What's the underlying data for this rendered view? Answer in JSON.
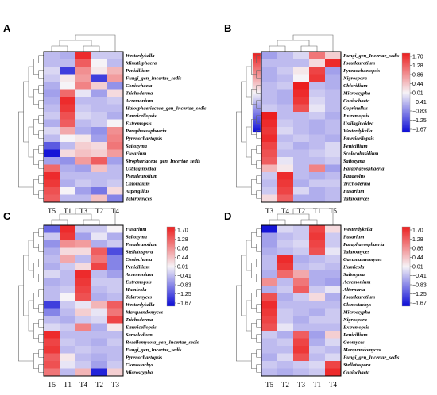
{
  "colors": {
    "low": "#0b0bd6",
    "mid": "#f6f3f7",
    "high": "#ec1f1f"
  },
  "colorbar_ticks": [
    "1.70",
    "1.28",
    "0.86",
    "0.44",
    "0.01",
    "−0.41",
    "−0.83",
    "−1.25",
    "−1.67"
  ],
  "chart_data": [
    {
      "type": "heatmap",
      "panel": "A",
      "range": [
        -1.67,
        1.7
      ],
      "columns": [
        "T5",
        "T1",
        "T3",
        "T2",
        "T4"
      ],
      "rows": [
        "Westerdykella",
        "Minutisphaera",
        "Penicillium",
        "Fungi_gen_Incertae_sedis",
        "Coniochaeta",
        "Trichoderma",
        "Acremonium",
        "Halosphaeriaceae_gen_Incertae_sedis",
        "Emericellopsis",
        "Extremopsis",
        "Paraphaeosphaeria",
        "Pyrenochaetopsis",
        "Saitozyma",
        "Fusarium",
        "Strophariaceae_gen_Incertae_sedis",
        "Ustilaginoidea",
        "Pseudeurotium",
        "Chloridium",
        "Aspergillus",
        "Talaromyces"
      ],
      "values": [
        [
          -0.4,
          -0.5,
          1.6,
          -0.3,
          -0.3
        ],
        [
          -0.4,
          -0.4,
          1.2,
          0.0,
          -0.4
        ],
        [
          -0.2,
          -1.3,
          0.8,
          0.1,
          0.5
        ],
        [
          -0.3,
          0.1,
          0.7,
          -1.3,
          0.7
        ],
        [
          -0.5,
          0.0,
          0.9,
          0.3,
          -0.7
        ],
        [
          -0.6,
          1.1,
          -0.1,
          -0.6,
          0.2
        ],
        [
          -0.5,
          1.6,
          -0.4,
          -0.4,
          -0.3
        ],
        [
          -0.4,
          1.5,
          -0.3,
          -0.4,
          -0.4
        ],
        [
          -0.3,
          1.3,
          -0.2,
          -0.3,
          -0.5
        ],
        [
          -0.5,
          1.2,
          -0.4,
          -0.3,
          0.0
        ],
        [
          -0.2,
          0.6,
          -0.5,
          -0.7,
          0.8
        ],
        [
          -0.4,
          0.0,
          0.1,
          -0.6,
          0.9
        ],
        [
          -1.1,
          -0.4,
          0.3,
          0.2,
          1.0
        ],
        [
          -1.6,
          0.2,
          0.4,
          0.3,
          0.7
        ],
        [
          -0.6,
          -0.7,
          0.7,
          1.2,
          -0.6
        ],
        [
          1.1,
          -0.5,
          -0.6,
          0.4,
          -0.4
        ],
        [
          1.6,
          -0.4,
          -0.4,
          -0.4,
          -0.4
        ],
        [
          1.5,
          -0.5,
          -0.3,
          -0.4,
          -0.3
        ],
        [
          1.3,
          0.0,
          -0.6,
          -0.9,
          0.2
        ],
        [
          1.2,
          -0.4,
          -0.4,
          0.4,
          -0.8
        ]
      ]
    },
    {
      "type": "heatmap",
      "panel": "B",
      "range": [
        -1.67,
        1.7
      ],
      "columns": [
        "T3",
        "T4",
        "T2",
        "T1",
        "T5"
      ],
      "rows": [
        "Fungi_gen_Incertae_sedis",
        "Pseudeurotium",
        "Pyrenochaetopsis",
        "Nigrospora",
        "Chloridium",
        "Microscypha",
        "Coniochaeta",
        "Coprinellus",
        "Extremopsis",
        "Ustilaginoidea",
        "Westerdykella",
        "Emericellopsis",
        "Penicillium",
        "Scolecobasidium",
        "Saitozyma",
        "Paraphaeosphaeria",
        "Panaeolus",
        "Trichoderma",
        "Fusarium",
        "Talaromyces"
      ],
      "values": [
        [
          -0.6,
          -0.4,
          -0.2,
          1.0,
          0.3
        ],
        [
          -0.4,
          -0.4,
          -0.4,
          0.2,
          1.6
        ],
        [
          -0.5,
          -0.3,
          0.1,
          1.4,
          -0.6
        ],
        [
          -0.5,
          -0.4,
          0.0,
          1.5,
          -0.5
        ],
        [
          -0.4,
          -0.3,
          1.7,
          -0.4,
          -0.5
        ],
        [
          -0.4,
          -0.5,
          1.6,
          -0.3,
          -0.4
        ],
        [
          -0.4,
          -0.5,
          1.5,
          -0.2,
          -0.4
        ],
        [
          -0.3,
          -0.4,
          1.3,
          -0.1,
          -0.4
        ],
        [
          1.7,
          -0.4,
          -0.4,
          -0.3,
          -0.5
        ],
        [
          1.6,
          -0.3,
          -0.4,
          -0.5,
          -0.4
        ],
        [
          1.5,
          -0.2,
          -0.4,
          -0.5,
          -0.4
        ],
        [
          1.6,
          -0.4,
          -0.3,
          -0.4,
          -0.5
        ],
        [
          1.4,
          -0.3,
          -0.5,
          -0.4,
          -0.2
        ],
        [
          1.3,
          -0.4,
          -0.4,
          -0.3,
          -0.2
        ],
        [
          1.2,
          -0.1,
          -0.4,
          -0.4,
          -0.3
        ],
        [
          0.5,
          0.1,
          -0.4,
          0.9,
          -0.6
        ],
        [
          -0.3,
          1.6,
          -0.4,
          -0.5,
          -0.4
        ],
        [
          -0.4,
          1.5,
          -0.5,
          -0.3,
          -0.3
        ],
        [
          -0.3,
          1.4,
          -0.2,
          -0.5,
          -0.4
        ],
        [
          0.2,
          1.2,
          -0.5,
          -0.5,
          -0.4
        ]
      ]
    },
    {
      "type": "heatmap",
      "panel": "C",
      "range": [
        -1.67,
        1.7
      ],
      "columns": [
        "T5",
        "T1",
        "T4",
        "T2",
        "T3"
      ],
      "rows": [
        "Fusarium",
        "Saitozyma",
        "Pseudeurotium",
        "Stellatospora",
        "Coniochaeta",
        "Penicillium",
        "Acremonium",
        "Extremopsis",
        "Humicola",
        "Talaromyces",
        "Westerdykella",
        "Marquandomyces",
        "Trichoderma",
        "Emericellopsis",
        "Sarocladium",
        "Rozellomycota_gen_Incertae_sedis",
        "Fungi_gen_Incertae_sedis",
        "Pyrenochaetopsis",
        "Clonostachys",
        "Microscypha"
      ],
      "values": [
        [
          -1.0,
          1.6,
          -0.3,
          -0.3,
          0.0
        ],
        [
          -0.3,
          1.5,
          -0.6,
          -0.1,
          -0.5
        ],
        [
          -0.7,
          0.8,
          0.7,
          -0.5,
          -0.3
        ],
        [
          -0.5,
          0.2,
          0.2,
          1.2,
          -1.2
        ],
        [
          -0.4,
          0.6,
          -0.4,
          1.0,
          -0.8
        ],
        [
          -0.5,
          -0.3,
          0.2,
          1.4,
          -0.8
        ],
        [
          -0.2,
          -0.4,
          1.6,
          -0.4,
          -0.6
        ],
        [
          -0.5,
          -0.4,
          1.5,
          -0.3,
          -0.3
        ],
        [
          -0.4,
          -0.3,
          1.4,
          -0.4,
          -0.3
        ],
        [
          -0.4,
          0.0,
          1.3,
          -0.5,
          -0.4
        ],
        [
          -1.3,
          -0.3,
          -0.1,
          0.5,
          1.2
        ],
        [
          -0.8,
          -0.4,
          0.3,
          -0.1,
          1.0
        ],
        [
          -0.4,
          -0.5,
          -0.3,
          -0.2,
          1.4
        ],
        [
          -0.2,
          -0.3,
          0.9,
          -0.5,
          0.1
        ],
        [
          1.6,
          -0.4,
          -0.4,
          -0.4,
          -0.4
        ],
        [
          1.4,
          -0.3,
          -0.4,
          -0.5,
          -0.3
        ],
        [
          1.5,
          -0.4,
          -0.3,
          -0.4,
          -0.4
        ],
        [
          1.2,
          0.1,
          -0.4,
          -0.5,
          -0.4
        ],
        [
          1.3,
          -0.1,
          -0.3,
          -0.6,
          -0.3
        ],
        [
          1.0,
          -0.4,
          0.5,
          -1.5,
          0.3
        ]
      ]
    },
    {
      "type": "heatmap",
      "panel": "D",
      "range": [
        -1.67,
        1.7
      ],
      "columns": [
        "T5",
        "T2",
        "T3",
        "T1",
        "T4"
      ],
      "rows": [
        "Westerdykella",
        "Fusarium",
        "Paraphaeosphaeria",
        "Talaromyces",
        "Gaeumannomyces",
        "Humicola",
        "Saitozyma",
        "Acremonium",
        "Alternaria",
        "Pseudeurotium",
        "Clonostachys",
        "Microscypha",
        "Nigrospora",
        "Extremopsis",
        "Penicillium",
        "Geomyces",
        "Marquandomyces",
        "Fungi_gen_Incertae_sedis",
        "Stellatospora",
        "Coniochaeta"
      ],
      "values": [
        [
          -1.6,
          -0.2,
          -0.3,
          1.4,
          0.2
        ],
        [
          -0.6,
          -0.4,
          -0.3,
          1.5,
          -0.3
        ],
        [
          -0.6,
          -0.3,
          -0.2,
          1.4,
          -0.3
        ],
        [
          -0.5,
          -0.4,
          -0.3,
          1.3,
          -0.1
        ],
        [
          -0.4,
          1.6,
          -0.5,
          -0.4,
          -0.3
        ],
        [
          -0.4,
          1.5,
          -0.4,
          -0.3,
          -0.4
        ],
        [
          -0.5,
          1.1,
          0.6,
          -0.5,
          -0.5
        ],
        [
          0.8,
          -0.4,
          1.0,
          -0.5,
          -0.6
        ],
        [
          -0.5,
          -0.3,
          1.2,
          -0.3,
          -0.1
        ],
        [
          1.3,
          -0.5,
          -0.3,
          0.2,
          -0.5
        ],
        [
          1.6,
          -0.4,
          -0.4,
          -0.4,
          -0.4
        ],
        [
          1.5,
          -0.3,
          -0.4,
          -0.5,
          -0.3
        ],
        [
          1.4,
          -0.3,
          -0.5,
          -0.3,
          -0.3
        ],
        [
          1.3,
          -0.1,
          -0.4,
          -0.4,
          -0.4
        ],
        [
          -0.3,
          -0.5,
          1.2,
          -0.6,
          0.3
        ],
        [
          -0.4,
          -0.3,
          1.4,
          -0.5,
          -0.2
        ],
        [
          -0.4,
          -0.4,
          1.5,
          -0.3,
          -0.4
        ],
        [
          -0.5,
          -0.2,
          1.3,
          -0.4,
          -0.2
        ],
        [
          -0.3,
          -0.4,
          -0.3,
          -0.2,
          1.4
        ],
        [
          -0.4,
          -0.5,
          -0.4,
          -0.3,
          1.6
        ]
      ]
    }
  ]
}
